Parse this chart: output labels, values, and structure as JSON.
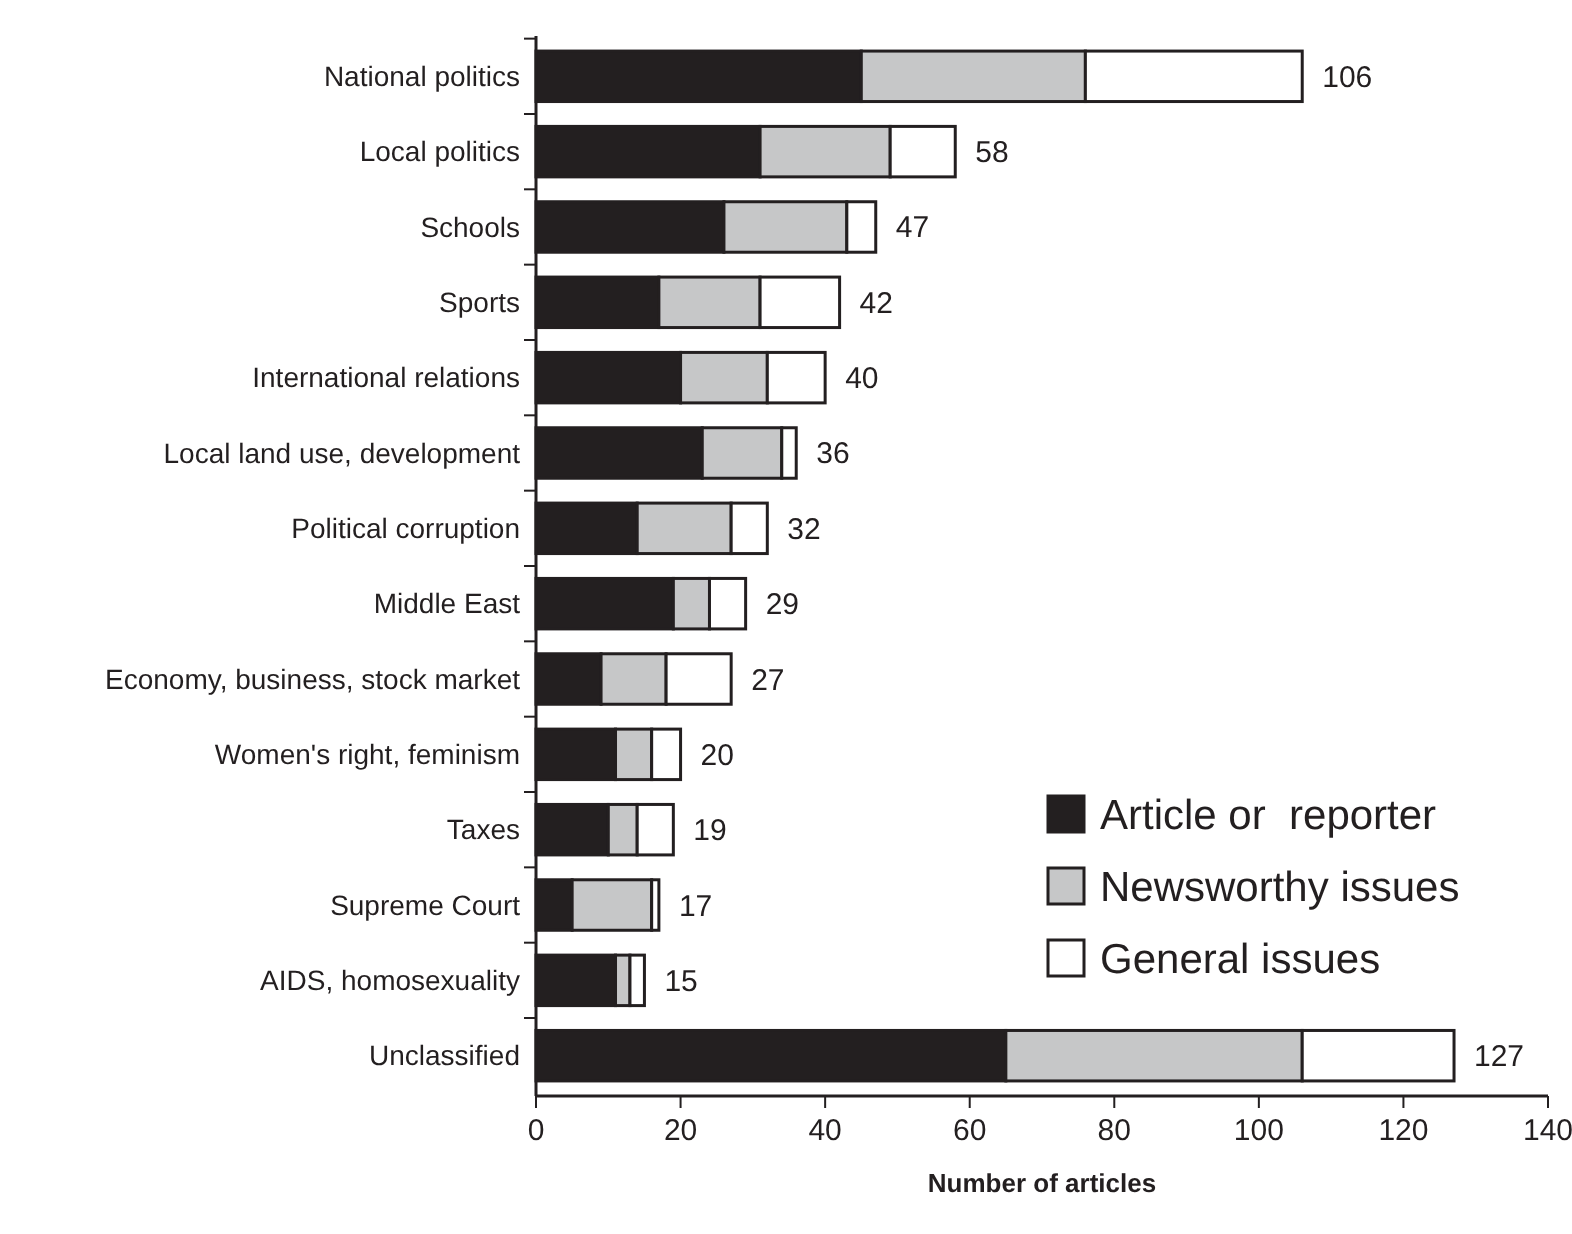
{
  "chart_data": {
    "type": "bar",
    "orientation": "horizontal",
    "stacked": true,
    "categories": [
      "National politics",
      "Local politics",
      "Schools",
      "Sports",
      "International relations",
      "Local land use, development",
      "Political corruption",
      "Middle East",
      "Economy, business, stock market",
      "Women's right, feminism",
      "Taxes",
      "Supreme Court",
      "AIDS, homosexuality",
      "Unclassified"
    ],
    "series": [
      {
        "name": "Article or  reporter",
        "color": "#231f20",
        "values": [
          45,
          31,
          26,
          17,
          20,
          23,
          14,
          19,
          9,
          11,
          10,
          5,
          11,
          65
        ]
      },
      {
        "name": "Newsworthy issues",
        "color": "#c6c7c8",
        "values": [
          31,
          18,
          17,
          14,
          12,
          11,
          13,
          5,
          9,
          5,
          4,
          11,
          2,
          41
        ]
      },
      {
        "name": "General issues",
        "color": "#ffffff",
        "values": [
          30,
          9,
          4,
          11,
          8,
          2,
          5,
          5,
          9,
          4,
          5,
          1,
          2,
          21
        ]
      }
    ],
    "totals": [
      "106",
      "58",
      "47",
      "42",
      "40",
      "36",
      "32",
      "29",
      "27",
      "20",
      "19",
      "17",
      "15",
      "127"
    ],
    "xlabel": "Number of articles",
    "xlim": [
      0,
      140
    ],
    "xticks": [
      0,
      20,
      40,
      60,
      80,
      100,
      120,
      140
    ],
    "grid": false,
    "legend": "bottom right"
  }
}
